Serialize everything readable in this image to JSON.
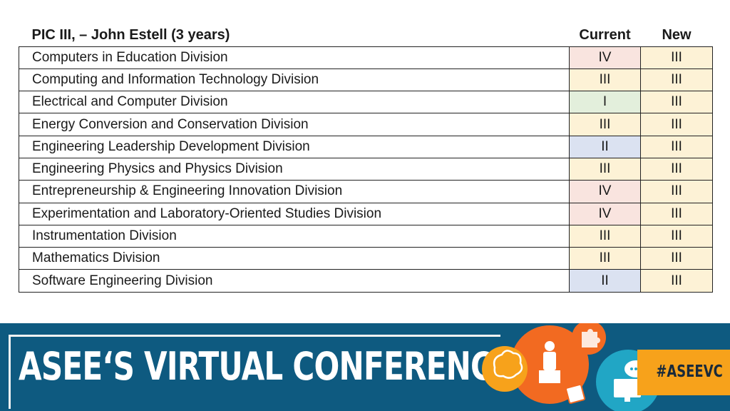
{
  "table": {
    "header": {
      "title": "PIC III, – John Estell (3 years)",
      "current": "Current",
      "new": "New"
    },
    "rows": [
      {
        "division": "Computers in Education Division",
        "current": "IV",
        "new": "III",
        "current_bg": "#f9e4df"
      },
      {
        "division": "Computing and Information Technology Division",
        "current": "III",
        "new": "III",
        "current_bg": "#fdf2d6"
      },
      {
        "division": "Electrical and Computer Division",
        "current": "I",
        "new": "III",
        "current_bg": "#e3efdc"
      },
      {
        "division": "Energy Conversion and Conservation Division",
        "current": "III",
        "new": "III",
        "current_bg": "#fdf2d6"
      },
      {
        "division": "Engineering Leadership Development Division",
        "current": "II",
        "new": "III",
        "current_bg": "#dbe2f1"
      },
      {
        "division": "Engineering Physics and Physics Division",
        "current": "III",
        "new": "III",
        "current_bg": "#fdf2d6"
      },
      {
        "division": "Entrepreneurship & Engineering Innovation Division",
        "current": "IV",
        "new": "III",
        "current_bg": "#f9e4df"
      },
      {
        "division": "Experimentation and Laboratory-Oriented Studies Division",
        "current": "IV",
        "new": "III",
        "current_bg": "#f9e4df"
      },
      {
        "division": "Instrumentation Division",
        "current": "III",
        "new": "III",
        "current_bg": "#fdf2d6"
      },
      {
        "division": "Mathematics Division",
        "current": "III",
        "new": "III",
        "current_bg": "#fdf2d6"
      },
      {
        "division": "Software Engineering Division",
        "current": "II",
        "new": "III",
        "current_bg": "#dbe2f1"
      }
    ]
  },
  "banner": {
    "title": "ASEE‘S VIRTUAL CONFERENCE",
    "hashtag": "#ASEEVC",
    "icons": [
      "brain-icon",
      "presenter-icon",
      "puzzle-icon",
      "chat-icon",
      "computer-icon",
      "calendar-icon"
    ],
    "colors": {
      "banner": "#0e5a80",
      "orange": "#f26a21",
      "amber": "#f7a21b",
      "teal": "#21a6c5"
    }
  }
}
